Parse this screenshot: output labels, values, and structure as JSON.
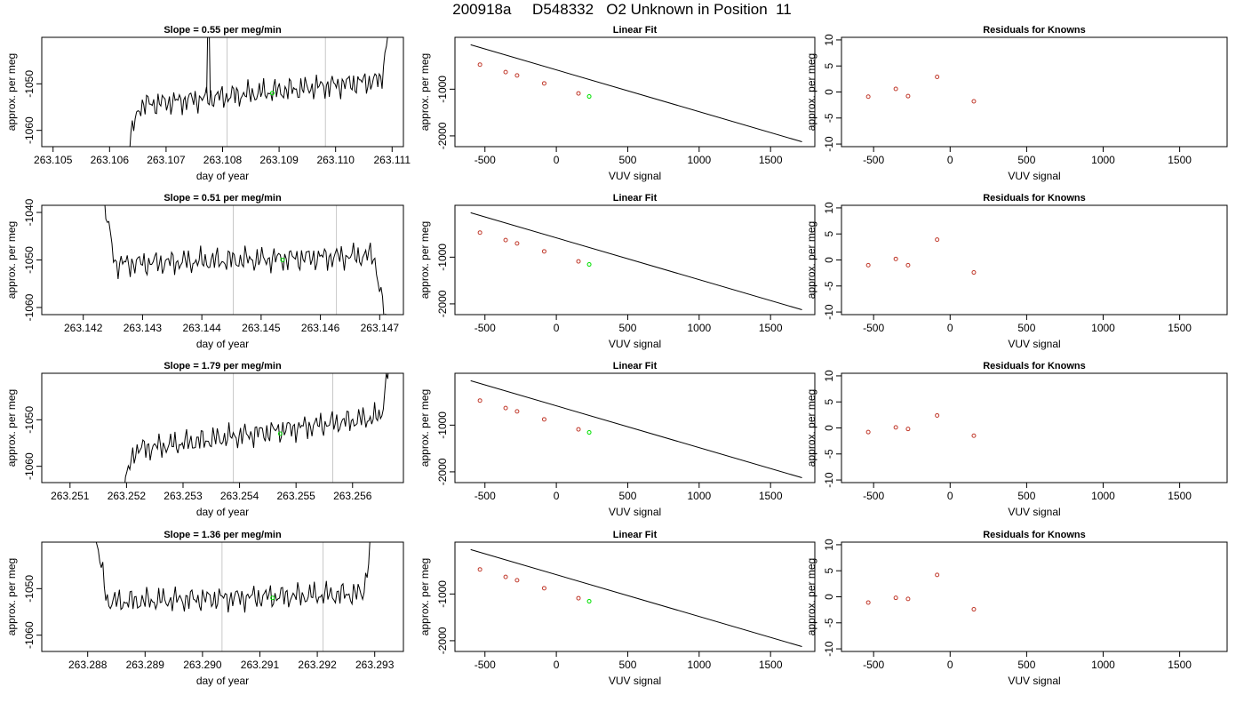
{
  "page": {
    "title": "200918a     D548332   O2 Unknown in Position  11"
  },
  "style": {
    "trace_color": "#000000",
    "vertical_marker_color": "#c8c8c8",
    "unknown_point_color": "#00e000",
    "known_point_color": "#c0392b",
    "axis_color": "#000000"
  },
  "chart_data": [
    {
      "type": "line",
      "title": "Slope =  0.55  per meg/min",
      "xlabel": "day of year",
      "ylabel": "approx. per meg",
      "xlim": [
        263.1048,
        263.1112
      ],
      "ylim": [
        -1063.5,
        -1040
      ],
      "xticks": [
        "263.105",
        "263.106",
        "263.107",
        "263.108",
        "263.109",
        "263.110",
        "263.111"
      ],
      "yticks": [
        -1060,
        -1050
      ],
      "series_start": 263.1062,
      "series_end": 263.111,
      "markers_x": [
        263.10808,
        263.10982
      ],
      "unknown_point": {
        "x": 263.10888,
        "y": -1052
      },
      "spike_x": 263.10775
    },
    {
      "type": "scatter",
      "title": "Linear Fit",
      "xlabel": "VUV signal",
      "ylabel": "approx. per meg",
      "xlim": [
        -710,
        1810
      ],
      "ylim": [
        -2230,
        110
      ],
      "xticks": [
        -500,
        0,
        500,
        1000,
        1500
      ],
      "yticks": [
        -1000,
        -2000
      ],
      "fit_line": {
        "x": [
          -600,
          1720
        ],
        "y": [
          -50,
          -2126
        ]
      },
      "knowns": {
        "x": [
          -535,
          -355,
          -275,
          -85,
          155
        ],
        "y": [
          -474,
          -634,
          -706,
          -876,
          -1090
        ]
      },
      "unknown": {
        "x": 230,
        "y": -1156
      }
    },
    {
      "type": "scatter",
      "title": "Residuals for Knowns",
      "xlabel": "VUV signal",
      "ylabel": "approx. per meg",
      "xlim": [
        -710,
        1810
      ],
      "ylim": [
        -10.5,
        10.5
      ],
      "xticks": [
        -500,
        0,
        500,
        1000,
        1500
      ],
      "yticks": [
        -10,
        -5,
        0,
        5,
        10
      ],
      "knowns": {
        "x": [
          -535,
          -355,
          -275,
          -85,
          155
        ],
        "y": [
          -0.9,
          0.6,
          -0.8,
          2.9,
          -1.8
        ]
      }
    },
    {
      "type": "line",
      "title": "Slope =  0.51  per meg/min",
      "xlabel": "day of year",
      "ylabel": "approx. per meg",
      "xlim": [
        263.1413,
        263.1474
      ],
      "ylim": [
        -1061.5,
        -1038.5
      ],
      "xticks": [
        "263.142",
        "263.143",
        "263.144",
        "263.145",
        "263.146",
        "263.147"
      ],
      "yticks": [
        -1060,
        -1050,
        -1040
      ],
      "series_start": 263.1422,
      "series_end": 263.1471,
      "markers_x": [
        263.14453,
        263.14627
      ],
      "unknown_point": {
        "x": 263.14536,
        "y": -1050
      },
      "spike_x": null
    },
    {
      "type": "scatter",
      "title": "Linear Fit",
      "xlabel": "VUV signal",
      "ylabel": "approx. per meg",
      "xlim": [
        -710,
        1810
      ],
      "ylim": [
        -2230,
        110
      ],
      "xticks": [
        -500,
        0,
        500,
        1000,
        1500
      ],
      "yticks": [
        -1000,
        -2000
      ],
      "fit_line": {
        "x": [
          -600,
          1720
        ],
        "y": [
          -50,
          -2126
        ]
      },
      "knowns": {
        "x": [
          -535,
          -355,
          -275,
          -85,
          155
        ],
        "y": [
          -474,
          -634,
          -706,
          -876,
          -1090
        ]
      },
      "unknown": {
        "x": 230,
        "y": -1156
      }
    },
    {
      "type": "scatter",
      "title": "Residuals for Knowns",
      "xlabel": "VUV signal",
      "ylabel": "approx. per meg",
      "xlim": [
        -710,
        1810
      ],
      "ylim": [
        -10.5,
        10.5
      ],
      "xticks": [
        -500,
        0,
        500,
        1000,
        1500
      ],
      "yticks": [
        -10,
        -5,
        0,
        5,
        10
      ],
      "knowns": {
        "x": [
          -535,
          -355,
          -275,
          -85,
          155
        ],
        "y": [
          -1.0,
          0.2,
          -1.0,
          3.9,
          -2.4
        ]
      }
    },
    {
      "type": "line",
      "title": "Slope =  1.79  per meg/min",
      "xlabel": "day of year",
      "ylabel": "approx. per meg",
      "xlim": [
        263.2505,
        263.2569
      ],
      "ylim": [
        -1063.5,
        -1040
      ],
      "xticks": [
        "263.251",
        "263.252",
        "263.253",
        "263.254",
        "263.255",
        "263.256"
      ],
      "yticks": [
        -1060,
        -1050
      ],
      "series_start": 263.2518,
      "series_end": 263.2567,
      "markers_x": [
        263.25389,
        263.25565
      ],
      "unknown_point": {
        "x": 263.25472,
        "y": -1053
      },
      "spike_x": null
    },
    {
      "type": "scatter",
      "title": "Linear Fit",
      "xlabel": "VUV signal",
      "ylabel": "approx. per meg",
      "xlim": [
        -710,
        1810
      ],
      "ylim": [
        -2230,
        110
      ],
      "xticks": [
        -500,
        0,
        500,
        1000,
        1500
      ],
      "yticks": [
        -1000,
        -2000
      ],
      "fit_line": {
        "x": [
          -600,
          1720
        ],
        "y": [
          -50,
          -2126
        ]
      },
      "knowns": {
        "x": [
          -535,
          -355,
          -275,
          -85,
          155
        ],
        "y": [
          -474,
          -634,
          -706,
          -876,
          -1090
        ]
      },
      "unknown": {
        "x": 230,
        "y": -1156
      }
    },
    {
      "type": "scatter",
      "title": "Residuals for Knowns",
      "xlabel": "VUV signal",
      "ylabel": "approx. per meg",
      "xlim": [
        -710,
        1810
      ],
      "ylim": [
        -10.5,
        10.5
      ],
      "xticks": [
        -500,
        0,
        500,
        1000,
        1500
      ],
      "yticks": [
        -10,
        -5,
        0,
        5,
        10
      ],
      "knowns": {
        "x": [
          -535,
          -355,
          -275,
          -85,
          155
        ],
        "y": [
          -0.8,
          0.1,
          -0.2,
          2.4,
          -1.5
        ]
      }
    },
    {
      "type": "line",
      "title": "Slope =  1.36  per meg/min",
      "xlabel": "day of year",
      "ylabel": "approx. per meg",
      "xlim": [
        263.2872,
        263.2935
      ],
      "ylim": [
        -1063.5,
        -1040
      ],
      "xticks": [
        "263.288",
        "263.289",
        "263.290",
        "263.291",
        "263.292",
        "263.293"
      ],
      "yticks": [
        -1060,
        -1050
      ],
      "series_start": 263.288,
      "series_end": 263.293,
      "markers_x": [
        263.29034,
        263.2921
      ],
      "unknown_point": {
        "x": 263.29122,
        "y": -1052
      },
      "spike_x": null
    },
    {
      "type": "scatter",
      "title": "Linear Fit",
      "xlabel": "VUV signal",
      "ylabel": "approx. per meg",
      "xlim": [
        -710,
        1810
      ],
      "ylim": [
        -2230,
        110
      ],
      "xticks": [
        -500,
        0,
        500,
        1000,
        1500
      ],
      "yticks": [
        -1000,
        -2000
      ],
      "fit_line": {
        "x": [
          -600,
          1720
        ],
        "y": [
          -50,
          -2126
        ]
      },
      "knowns": {
        "x": [
          -535,
          -355,
          -275,
          -85,
          155
        ],
        "y": [
          -474,
          -634,
          -706,
          -876,
          -1090
        ]
      },
      "unknown": {
        "x": 230,
        "y": -1156
      }
    },
    {
      "type": "scatter",
      "title": "Residuals for Knowns",
      "xlabel": "VUV signal",
      "ylabel": "approx. per meg",
      "xlim": [
        -710,
        1810
      ],
      "ylim": [
        -10.5,
        10.5
      ],
      "xticks": [
        -500,
        0,
        500,
        1000,
        1500
      ],
      "yticks": [
        -10,
        -5,
        0,
        5,
        10
      ],
      "knowns": {
        "x": [
          -535,
          -355,
          -275,
          -85,
          155
        ],
        "y": [
          -1.1,
          -0.2,
          -0.4,
          4.2,
          -2.4
        ]
      }
    }
  ]
}
